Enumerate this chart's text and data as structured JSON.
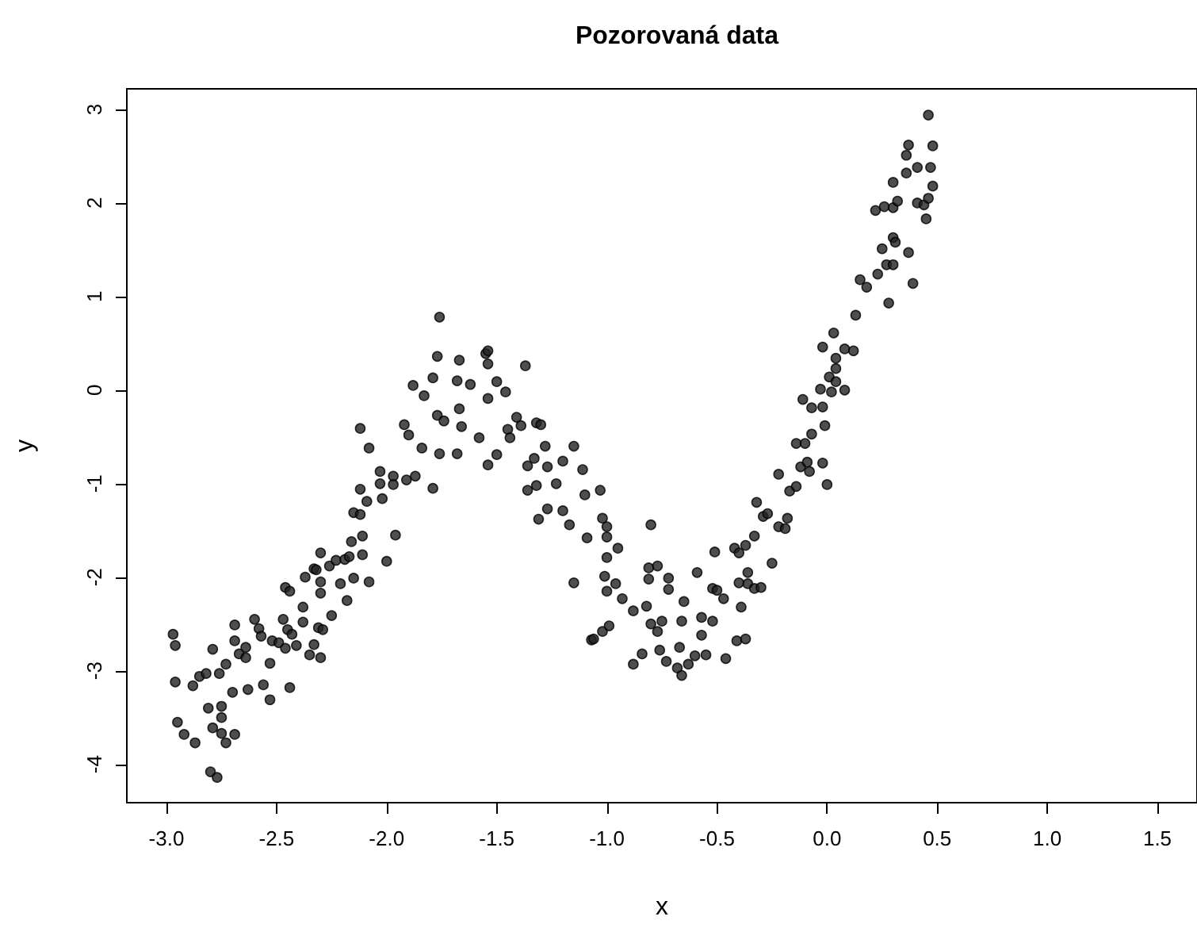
{
  "chart_data": {
    "type": "scatter",
    "title": "Pozorovaná data",
    "xlabel": "x",
    "ylabel": "y",
    "xlim": [
      -3.18,
      1.68
    ],
    "ylim": [
      -4.41,
      3.22
    ],
    "xticks": [
      {
        "value": -3,
        "label": "-3.0"
      },
      -2.5,
      {
        "value": -2,
        "label": "-2.0"
      },
      -1.5,
      {
        "value": -1,
        "label": "-1.0"
      },
      -0.5,
      {
        "value": 0,
        "label": "0.0"
      },
      0.5,
      {
        "value": 1,
        "label": "1.0"
      },
      1.5
    ],
    "yticks": [
      -4,
      -3,
      -2,
      -1,
      0,
      1,
      2,
      3
    ],
    "grid": false,
    "marker": "circle",
    "x": [
      -2.97,
      -2.96,
      -2.96,
      -2.95,
      -2.92,
      -2.87,
      -2.88,
      -2.85,
      -2.82,
      -2.79,
      -2.81,
      -2.79,
      -2.8,
      -2.77,
      -2.76,
      -2.75,
      -2.75,
      -2.75,
      -2.73,
      -2.73,
      -2.69,
      -2.7,
      -2.69,
      -2.69,
      -2.67,
      -2.64,
      -2.64,
      -2.63,
      -2.6,
      -2.58,
      -2.57,
      -2.56,
      -2.53,
      -2.53,
      -2.52,
      -2.49,
      -2.46,
      -2.47,
      -2.46,
      -2.44,
      -2.45,
      -2.43,
      -2.44,
      -2.41,
      -2.38,
      -2.38,
      -2.37,
      -2.35,
      -2.33,
      -2.33,
      -2.32,
      -2.31,
      -2.3,
      -2.3,
      -2.3,
      -2.3,
      -2.29,
      -2.26,
      -2.25,
      -2.23,
      -2.21,
      -2.19,
      -2.18,
      -2.17,
      -2.16,
      -2.15,
      -2.15,
      -2.12,
      -2.11,
      -2.11,
      -2.12,
      -2.09,
      -2.08,
      -2.03,
      -2.03,
      -2.02,
      -2.0,
      -1.97,
      -1.97,
      -1.96,
      -1.91,
      -1.87,
      -1.79,
      -1.36,
      -1.32,
      -1.31,
      -1.27,
      -1.23,
      -1.2,
      -1.17,
      -1.15,
      -1.09,
      -1.07,
      -2.12,
      -2.08,
      -1.92,
      -1.88,
      -1.83,
      -1.9,
      -1.84,
      -1.79,
      -1.77,
      -1.76,
      -1.77,
      -1.74,
      -1.76,
      -1.68,
      -1.67,
      -1.67,
      -1.66,
      -1.68,
      -1.62,
      -1.58,
      -1.55,
      -1.54,
      -1.54,
      -1.54,
      -1.54,
      -1.5,
      -1.5,
      -1.46,
      -1.45,
      -1.44,
      -1.41,
      -1.39,
      -1.37,
      -1.36,
      -1.32,
      -1.3,
      -1.33,
      -1.28,
      -1.27,
      -1.2,
      -1.15,
      -1.11,
      -1.1,
      -1.03,
      -1.02,
      -1.0,
      -1.0,
      -1.0,
      -0.95,
      -1.01,
      -1.0,
      -0.96,
      -0.93,
      -1.06,
      -1.02,
      -0.99,
      -0.8,
      -0.88,
      -0.82,
      -0.81,
      -0.77,
      -0.81,
      -0.72,
      -0.72,
      -0.8,
      -0.75,
      -0.77,
      -0.88,
      -0.84,
      -0.76,
      -0.73,
      -0.67,
      -0.68,
      -0.66,
      -0.63,
      -0.66,
      -0.65,
      -0.6,
      -0.59,
      -0.57,
      -0.57,
      -0.55,
      -0.52,
      -0.51,
      -0.52,
      -0.5,
      -0.47,
      -0.46,
      -0.42,
      -0.4,
      -0.4,
      -0.39,
      -0.41,
      -0.37,
      -0.37,
      -0.36,
      -0.36,
      -0.33,
      -0.3,
      -0.33,
      -0.32,
      -0.29,
      -0.27,
      -0.25,
      -0.22,
      -0.22,
      -0.19,
      -0.18,
      -0.17,
      -0.14,
      -0.08,
      0.0,
      -0.12,
      -0.09,
      -0.02,
      -0.14,
      -0.1,
      -0.07,
      -0.01,
      -0.11,
      -0.07,
      -0.02,
      -0.03,
      0.01,
      0.02,
      0.04,
      0.08,
      0.04,
      0.04,
      -0.02,
      0.03,
      0.08,
      0.12,
      0.13,
      0.15,
      0.18,
      0.23,
      0.28,
      0.25,
      0.27,
      0.3,
      0.3,
      0.31,
      0.37,
      0.39,
      0.22,
      0.26,
      0.3,
      0.32,
      0.3,
      0.36,
      0.36,
      0.37,
      0.41,
      0.47,
      0.48,
      0.48,
      0.46,
      0.41,
      0.44,
      0.46,
      0.45
    ],
    "values": [
      -2.61,
      -2.73,
      -3.12,
      -3.55,
      -3.68,
      -3.77,
      -3.16,
      -3.06,
      -3.03,
      -2.77,
      -3.4,
      -3.61,
      -4.08,
      -4.14,
      -3.03,
      -3.38,
      -3.5,
      -3.67,
      -3.77,
      -2.93,
      -3.68,
      -3.23,
      -2.51,
      -2.68,
      -2.82,
      -2.75,
      -2.86,
      -3.2,
      -2.45,
      -2.55,
      -2.63,
      -3.15,
      -2.92,
      -3.31,
      -2.68,
      -2.7,
      -2.76,
      -2.45,
      -2.11,
      -2.15,
      -2.56,
      -2.61,
      -3.18,
      -2.73,
      -2.32,
      -2.48,
      -2.0,
      -2.83,
      -2.72,
      -1.91,
      -1.92,
      -2.54,
      -2.86,
      -1.74,
      -2.05,
      -2.17,
      -2.56,
      -1.88,
      -2.41,
      -1.82,
      -2.07,
      -1.81,
      -2.25,
      -1.78,
      -1.62,
      -2.01,
      -1.31,
      -1.33,
      -1.56,
      -1.76,
      -1.06,
      -1.19,
      -2.05,
      -0.87,
      -1.0,
      -1.16,
      -1.83,
      -0.92,
      -1.01,
      -1.55,
      -0.96,
      -0.92,
      -1.05,
      -1.07,
      -1.02,
      -1.38,
      -1.27,
      -1.0,
      -1.29,
      -1.44,
      -2.06,
      -1.58,
      -2.67,
      -0.41,
      -0.62,
      -0.37,
      0.05,
      -0.06,
      -0.48,
      -0.62,
      0.13,
      0.36,
      0.78,
      -0.27,
      -0.33,
      -0.68,
      0.1,
      0.32,
      -0.2,
      -0.39,
      -0.68,
      0.06,
      -0.51,
      0.39,
      0.42,
      0.28,
      -0.09,
      -0.8,
      -0.69,
      0.09,
      -0.02,
      -0.42,
      -0.51,
      -0.29,
      -0.38,
      0.26,
      -0.81,
      -0.35,
      -0.37,
      -0.73,
      -0.6,
      -0.82,
      -0.76,
      -0.6,
      -0.85,
      -1.12,
      -1.07,
      -1.37,
      -1.46,
      -1.57,
      -1.79,
      -1.69,
      -1.99,
      -2.15,
      -2.07,
      -2.23,
      -2.66,
      -2.58,
      -2.52,
      -1.44,
      -2.36,
      -2.31,
      -1.9,
      -1.88,
      -2.02,
      -2.01,
      -2.13,
      -2.5,
      -2.47,
      -2.58,
      -2.93,
      -2.82,
      -2.78,
      -2.9,
      -2.75,
      -2.97,
      -3.05,
      -2.93,
      -2.47,
      -2.26,
      -2.84,
      -1.95,
      -2.43,
      -2.62,
      -2.83,
      -2.47,
      -1.73,
      -2.12,
      -2.14,
      -2.23,
      -2.87,
      -1.69,
      -1.74,
      -2.06,
      -2.32,
      -2.68,
      -2.66,
      -1.66,
      -1.95,
      -2.07,
      -2.12,
      -2.11,
      -1.56,
      -1.2,
      -1.35,
      -1.32,
      -1.85,
      -0.9,
      -1.46,
      -1.48,
      -1.37,
      -1.08,
      -1.03,
      -0.87,
      -1.01,
      -0.82,
      -0.77,
      -0.78,
      -0.57,
      -0.57,
      -0.47,
      -0.38,
      -0.1,
      -0.19,
      -0.18,
      0.01,
      0.14,
      -0.02,
      0.09,
      0.0,
      0.23,
      0.34,
      0.46,
      0.61,
      0.44,
      0.42,
      0.8,
      1.18,
      1.1,
      1.24,
      0.93,
      1.51,
      1.34,
      1.34,
      1.63,
      1.58,
      1.47,
      1.14,
      1.92,
      1.96,
      1.95,
      2.02,
      2.22,
      2.32,
      2.51,
      2.62,
      2.38,
      2.38,
      2.61,
      2.18,
      2.94,
      2.0,
      1.98,
      2.05,
      1.83
    ],
    "color": "#222222"
  }
}
